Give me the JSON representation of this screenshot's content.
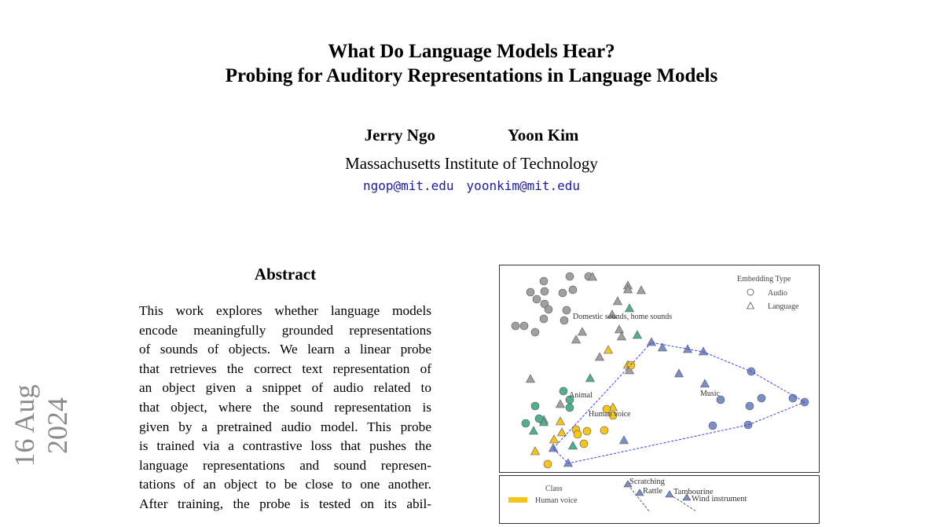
{
  "title_lines": [
    "What Do Language Models Hear?",
    "Probing for Auditory Representations in Language Models"
  ],
  "authors": [
    "Jerry Ngo",
    "Yoon Kim"
  ],
  "affiliation": "Massachusetts Institute of Technology",
  "emails": [
    "ngop@mit.edu",
    "yoonkim@mit.edu"
  ],
  "arxiv_date": "16 Aug 2024",
  "abstract": {
    "heading": "Abstract",
    "lines": [
      "This work explores whether language models",
      "encode meaningfully grounded representations",
      "of sounds of objects.  We learn a linear probe",
      "that retrieves the correct text representation of",
      "an object given a snippet of audio related to",
      "that object, where the sound representation is",
      "given by a pretrained audio model. This probe",
      "is trained via a contrastive loss that pushes the",
      "language representations and sound represen-",
      "tations of an object to be close to one another.",
      "After training, the probe is tested on its abil-"
    ]
  },
  "figure1": {
    "legend_title": "Embedding Type",
    "legend_items": [
      {
        "label": "Audio",
        "marker": "circle"
      },
      {
        "label": "Language",
        "marker": "triangle"
      }
    ],
    "cluster_labels": [
      "Domestic sounds, home sounds",
      "Animal",
      "Human voice",
      "Music"
    ],
    "colors": {
      "Domestic sounds, home sounds": "#a0a0a0",
      "Animal": "#4fb08c",
      "Human voice": "#f5c518",
      "Music": "#7b8fc7",
      "hull": "#3a3aff"
    }
  },
  "figure2": {
    "legend_title": "Class",
    "legend_items": [
      {
        "label": "Human voice",
        "color": "#f5c518"
      }
    ],
    "point_labels": [
      "Scratching",
      "Rattle",
      "Tambourine",
      "Wind instrument"
    ]
  }
}
